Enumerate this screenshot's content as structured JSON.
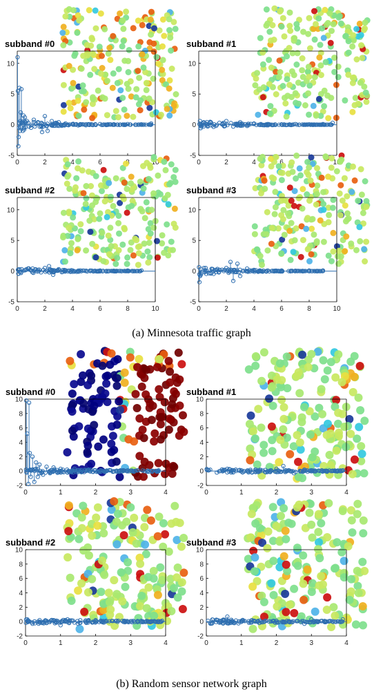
{
  "captions": {
    "a": "(a) Minnesota traffic graph",
    "b": "(b) Random sensor network graph"
  },
  "chart_data": [
    {
      "type": "scatter",
      "figure": "a",
      "title": "subband #0",
      "xlim": [
        0,
        10
      ],
      "ylim": [
        -5,
        12
      ],
      "xticks": [
        0,
        2,
        4,
        6,
        8,
        10
      ],
      "yticks": [
        -5,
        0,
        5,
        10
      ],
      "series": [
        {
          "x": [
            0.02,
            0.05,
            0.08,
            0.1,
            0.15,
            0.2,
            0.25,
            0.3,
            0.35,
            0.4,
            0.45,
            0.5,
            0.55,
            0.6,
            0.7,
            0.8,
            1.0,
            1.2,
            1.5,
            1.8,
            2.0,
            2.2,
            2.5,
            2.8,
            3.0,
            3.5,
            4.0,
            5.0,
            6.0,
            7.0,
            8.0,
            9.0,
            9.7
          ],
          "y": [
            11,
            5.5,
            -3.5,
            -2,
            6,
            -1,
            2,
            5.8,
            0.5,
            -1,
            1.5,
            -0.8,
            1.2,
            -0.4,
            0.6,
            0.3,
            -0.5,
            0.8,
            0.4,
            -1.2,
            1.4,
            -1,
            0.6,
            0.3,
            0.4,
            0.2,
            0.1,
            0.05,
            0.1,
            0.05,
            0.1,
            0.05,
            0.2
          ]
        }
      ],
      "overlay": "graph-signal"
    },
    {
      "type": "scatter",
      "figure": "a",
      "title": "subband #1",
      "xlim": [
        0,
        10
      ],
      "ylim": [
        -5,
        12
      ],
      "xticks": [
        0,
        2,
        4,
        6,
        8,
        10
      ],
      "yticks": [
        -5,
        0,
        5,
        10
      ],
      "series": [
        {
          "x": [
            0.05,
            0.5,
            1.0,
            1.5,
            2.0,
            2.5,
            3.0,
            3.5,
            4.0,
            4.5,
            5.0,
            6.0,
            7.0,
            8.0,
            9.0,
            9.7
          ],
          "y": [
            0.1,
            0.2,
            -0.1,
            0.3,
            0.6,
            -0.3,
            0.4,
            -0.2,
            0.2,
            0.1,
            0.1,
            0.05,
            0.1,
            0.05,
            0.1,
            0.3
          ]
        }
      ],
      "overlay": "graph-signal"
    },
    {
      "type": "scatter",
      "figure": "a",
      "title": "subband #2",
      "xlim": [
        0,
        10
      ],
      "ylim": [
        -5,
        12
      ],
      "xticks": [
        0,
        2,
        4,
        6,
        8,
        10
      ],
      "yticks": [
        -5,
        0,
        5,
        10
      ],
      "series": [
        {
          "x": [
            0.05,
            0.5,
            1.0,
            1.5,
            2.0,
            2.3,
            2.6,
            3.0,
            3.5,
            4.0,
            5.0,
            6.0,
            7.0,
            8.0,
            9.0
          ],
          "y": [
            0.2,
            0.1,
            0.1,
            0.2,
            0.5,
            0.8,
            -0.6,
            0.3,
            0.1,
            0.1,
            0.05,
            0.1,
            0.05,
            0.1,
            0.1
          ]
        }
      ],
      "overlay": "graph-signal"
    },
    {
      "type": "scatter",
      "figure": "a",
      "title": "subband #3",
      "xlim": [
        0,
        10
      ],
      "ylim": [
        -5,
        12
      ],
      "xticks": [
        0,
        2,
        4,
        6,
        8,
        10
      ],
      "yticks": [
        -5,
        0,
        5,
        10
      ],
      "series": [
        {
          "x": [
            0.05,
            0.1,
            0.5,
            1.0,
            1.5,
            2.0,
            2.3,
            2.5,
            2.8,
            3.0,
            3.5,
            4.0,
            5.0,
            6.0,
            7.0,
            8.0,
            9.0
          ],
          "y": [
            -1.8,
            -0.8,
            0.5,
            0.3,
            0.2,
            0.5,
            1.5,
            -1.6,
            1.2,
            -0.8,
            0.4,
            0.2,
            0.1,
            0.1,
            0.05,
            0.1,
            0.1
          ]
        }
      ],
      "overlay": "graph-signal"
    },
    {
      "type": "scatter",
      "figure": "b",
      "title": "subband #0",
      "xlim": [
        0,
        4
      ],
      "ylim": [
        -2,
        10
      ],
      "xticks": [
        0,
        1,
        2,
        3,
        4
      ],
      "yticks": [
        -2,
        0,
        2,
        4,
        6,
        8,
        10
      ],
      "series": [
        {
          "x": [
            0.02,
            0.05,
            0.08,
            0.1,
            0.12,
            0.15,
            0.2,
            0.25,
            0.3,
            0.35,
            0.4,
            0.5,
            0.6,
            0.7,
            0.8,
            1.0,
            1.2,
            1.4,
            1.6,
            1.8,
            2.0,
            2.2,
            2.4,
            2.6,
            2.8,
            3.0,
            3.2,
            3.5,
            3.8
          ],
          "y": [
            9.8,
            5.2,
            -1.8,
            9.5,
            2.5,
            -0.8,
            2.0,
            -1.5,
            1.2,
            -0.8,
            0.9,
            -0.5,
            0.6,
            -0.3,
            0.5,
            0.3,
            -0.2,
            0.3,
            0.1,
            0.2,
            0.1,
            0.05,
            0.1,
            0.05,
            0.1,
            0.05,
            0.1,
            0.05,
            0.1
          ]
        }
      ],
      "overlay": "graph-signal"
    },
    {
      "type": "scatter",
      "figure": "b",
      "title": "subband #1",
      "xlim": [
        0,
        4
      ],
      "ylim": [
        -2,
        10
      ],
      "xticks": [
        0,
        1,
        2,
        3,
        4
      ],
      "yticks": [
        -2,
        0,
        2,
        4,
        6,
        8,
        10
      ],
      "series": [
        {
          "x": [
            0.05,
            0.3,
            0.6,
            1.0,
            1.4,
            1.8,
            2.0,
            2.2,
            2.5,
            2.8,
            3.0,
            3.3,
            3.6,
            3.9
          ],
          "y": [
            0.1,
            -0.2,
            0.3,
            0.1,
            0.2,
            -0.1,
            0.3,
            0.7,
            -0.3,
            0.2,
            0.1,
            0.1,
            0.05,
            0.1
          ]
        }
      ],
      "overlay": "graph-signal"
    },
    {
      "type": "scatter",
      "figure": "b",
      "title": "subband #2",
      "xlim": [
        0,
        4
      ],
      "ylim": [
        -2,
        10
      ],
      "xticks": [
        0,
        1,
        2,
        3,
        4
      ],
      "yticks": [
        -2,
        0,
        2,
        4,
        6,
        8,
        10
      ],
      "series": [
        {
          "x": [
            0.05,
            0.2,
            0.4,
            0.6,
            0.8,
            1.0,
            1.2,
            1.5,
            1.8,
            2.0,
            2.3,
            2.6,
            3.0,
            3.3,
            3.6,
            3.9
          ],
          "y": [
            0.3,
            -0.3,
            0.2,
            -0.2,
            0.1,
            -0.5,
            0.3,
            -0.3,
            0.2,
            0.2,
            0.1,
            0.1,
            0.05,
            0.1,
            0.05,
            0.1
          ]
        }
      ],
      "overlay": "graph-signal"
    },
    {
      "type": "scatter",
      "figure": "b",
      "title": "subband #3",
      "xlim": [
        0,
        4
      ],
      "ylim": [
        -2,
        10
      ],
      "xticks": [
        0,
        1,
        2,
        3,
        4
      ],
      "yticks": [
        -2,
        0,
        2,
        4,
        6,
        8,
        10
      ],
      "series": [
        {
          "x": [
            0.05,
            0.3,
            0.6,
            0.8,
            1.0,
            1.3,
            1.6,
            2.0,
            2.3,
            2.6,
            2.8,
            3.0,
            3.3,
            3.6,
            3.9
          ],
          "y": [
            0.1,
            0.2,
            0.7,
            -0.2,
            0.1,
            0.2,
            -0.1,
            0.1,
            0.1,
            0.05,
            -0.3,
            0.3,
            0.1,
            0.05,
            0.3
          ]
        }
      ],
      "overlay": "graph-signal"
    }
  ]
}
